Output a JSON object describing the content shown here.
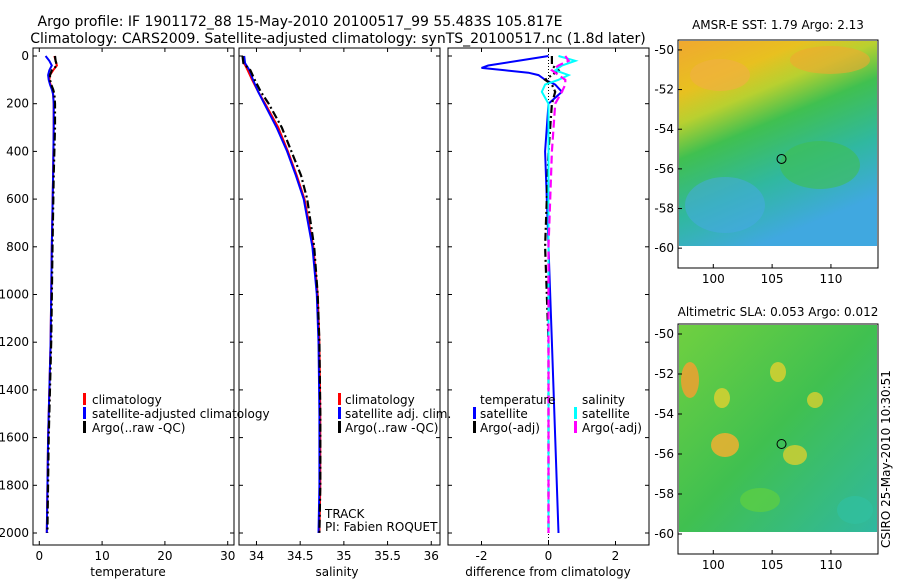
{
  "title": {
    "line1": "Argo profile: IF 1901172_88 15-May-2010 20100517_99 55.483S 105.817E",
    "line2": "Climatology: CARS2009. Satellite-adjusted climatology: synTS_20100517.nc (1.8d later)"
  },
  "colors": {
    "red": "#ff0000",
    "blue": "#0000ff",
    "black": "#000000",
    "cyan": "#00ffff",
    "magenta": "#ff00ff"
  },
  "depth_ticks": [
    "0",
    "200",
    "400",
    "600",
    "800",
    "1000",
    "1200",
    "1400",
    "1600",
    "1800",
    "2000"
  ],
  "chart_data": [
    {
      "type": "line",
      "name": "temperature-profile",
      "xlabel": "temperature",
      "ylabel": "",
      "xlim": [
        -1,
        31
      ],
      "ylim": [
        2050,
        0
      ],
      "x_ticks": [
        "0",
        "10",
        "20",
        "30"
      ],
      "y_reversed": true,
      "legend": [
        "climatology",
        "satellite-adjusted climatology",
        "Argo(..raw -QC)"
      ],
      "series": [
        {
          "name": "climatology",
          "color": "red",
          "dash": "solid",
          "depth": [
            0,
            20,
            40,
            60,
            80,
            100,
            120,
            140,
            160,
            200,
            300,
            500,
            800,
            1200,
            1600,
            2000
          ],
          "values": [
            2.4,
            2.6,
            2.8,
            2.2,
            1.7,
            1.6,
            1.8,
            2.1,
            2.2,
            2.3,
            2.3,
            2.2,
            2.0,
            1.8,
            1.4,
            1.2
          ]
        },
        {
          "name": "satellite-adjusted climatology",
          "color": "blue",
          "dash": "solid",
          "depth": [
            0,
            20,
            40,
            60,
            80,
            100,
            120,
            140,
            160,
            200,
            300,
            500,
            800,
            1200,
            1600,
            2000
          ],
          "values": [
            1.0,
            1.6,
            2.0,
            1.6,
            1.4,
            1.5,
            1.7,
            2.0,
            2.2,
            2.3,
            2.3,
            2.2,
            2.0,
            1.8,
            1.4,
            1.2
          ]
        },
        {
          "name": "Argo(..raw -QC)",
          "color": "black",
          "dash": "dashdot",
          "depth": [
            0,
            20,
            40,
            60,
            80,
            100,
            120,
            140,
            160,
            200,
            300,
            500,
            800,
            1200,
            1600,
            2000
          ],
          "values": [
            2.5,
            2.6,
            2.8,
            2.0,
            1.7,
            1.7,
            1.9,
            2.2,
            2.4,
            2.5,
            2.5,
            2.3,
            2.1,
            1.9,
            1.5,
            1.3
          ]
        }
      ]
    },
    {
      "type": "line",
      "name": "salinity-profile",
      "xlabel": "salinity",
      "ylabel": "",
      "xlim": [
        33.8,
        36.1
      ],
      "ylim": [
        2050,
        0
      ],
      "x_ticks": [
        "34",
        "34.5",
        "35",
        "35.5",
        "36"
      ],
      "y_reversed": true,
      "legend": [
        "climatology",
        "satellite adj. clim.",
        "Argo(..raw -QC)"
      ],
      "annotations": [
        "TRACK",
        "PI: Fabien ROQUET"
      ],
      "series": [
        {
          "name": "climatology",
          "color": "red",
          "dash": "solid",
          "depth": [
            0,
            30,
            60,
            100,
            150,
            200,
            300,
            400,
            500,
            600,
            800,
            1000,
            1200,
            1500,
            1800,
            2000
          ],
          "values": [
            33.85,
            33.86,
            33.9,
            33.95,
            34.02,
            34.1,
            34.25,
            34.36,
            34.46,
            34.55,
            34.65,
            34.7,
            34.72,
            34.73,
            34.73,
            34.72
          ]
        },
        {
          "name": "satellite adj. clim.",
          "color": "blue",
          "dash": "solid",
          "depth": [
            0,
            30,
            60,
            100,
            150,
            200,
            300,
            400,
            500,
            600,
            800,
            1000,
            1200,
            1500,
            1800,
            2000
          ],
          "values": [
            33.86,
            33.87,
            33.92,
            33.96,
            34.02,
            34.09,
            34.23,
            34.35,
            34.45,
            34.54,
            34.64,
            34.69,
            34.71,
            34.72,
            34.72,
            34.71
          ]
        },
        {
          "name": "Argo(..raw -QC)",
          "color": "black",
          "dash": "dashdot",
          "depth": [
            0,
            30,
            60,
            100,
            150,
            200,
            300,
            400,
            500,
            600,
            800,
            1000,
            1200,
            1500,
            1800,
            2000
          ],
          "values": [
            33.84,
            33.85,
            33.93,
            33.98,
            34.05,
            34.14,
            34.29,
            34.4,
            34.51,
            34.58,
            34.66,
            34.7,
            34.72,
            34.73,
            34.73,
            34.72
          ]
        }
      ]
    },
    {
      "type": "line",
      "name": "difference-profile",
      "xlabel": "difference from climatology",
      "ylabel": "",
      "xlim": [
        -3,
        3
      ],
      "ylim": [
        2050,
        0
      ],
      "x_ticks": [
        "-2",
        "0",
        "2"
      ],
      "y_reversed": true,
      "legend_headers": [
        "temperature",
        "salinity"
      ],
      "legend": [
        "satellite",
        "Argo(-adj)",
        "satellite",
        "Argo(-adj)"
      ],
      "series": [
        {
          "name": "temperature satellite",
          "color": "blue",
          "dash": "solid",
          "depth": [
            0,
            20,
            40,
            50,
            60,
            70,
            80,
            100,
            120,
            150,
            200,
            400,
            800,
            1200,
            1600,
            2000
          ],
          "values": [
            0.0,
            -0.9,
            -1.8,
            -2.0,
            -1.3,
            -0.6,
            -0.3,
            -0.1,
            0.2,
            0.4,
            0.0,
            -0.1,
            0.0,
            0.1,
            0.2,
            0.3
          ]
        },
        {
          "name": "temperature Argo(-adj)",
          "color": "black",
          "dash": "dashdot",
          "depth": [
            0,
            20,
            40,
            60,
            80,
            100,
            120,
            150,
            200,
            400,
            800,
            1200,
            1600,
            2000
          ],
          "values": [
            0.1,
            0.1,
            0.1,
            0.3,
            0.1,
            -0.1,
            0.1,
            0.2,
            0.1,
            0.0,
            -0.1,
            0.0,
            0.0,
            0.0
          ]
        },
        {
          "name": "salinity satellite",
          "color": "cyan",
          "dash": "solid",
          "depth": [
            0,
            20,
            40,
            60,
            80,
            100,
            120,
            150,
            200,
            400,
            800,
            1200,
            1600,
            2000
          ],
          "values": [
            0.3,
            0.8,
            0.4,
            0.2,
            0.6,
            0.3,
            -0.1,
            -0.2,
            0.0,
            0.0,
            0.0,
            0.0,
            0.0,
            0.0
          ]
        },
        {
          "name": "salinity Argo(-adj)",
          "color": "magenta",
          "dash": "dash",
          "depth": [
            0,
            20,
            40,
            60,
            80,
            100,
            120,
            150,
            200,
            400,
            800,
            1200,
            1600,
            2000
          ],
          "values": [
            0.5,
            0.6,
            0.3,
            0.1,
            0.3,
            0.5,
            0.5,
            0.4,
            0.2,
            0.1,
            0.0,
            0.0,
            0.0,
            0.0
          ]
        }
      ]
    },
    {
      "type": "heatmap",
      "name": "amsr-sst-map",
      "title": "AMSR-E SST: 1.79 Argo: 2.13",
      "xlim": [
        97,
        114
      ],
      "ylim": [
        -61,
        -49.5
      ],
      "x_ticks": [
        "100",
        "105",
        "110"
      ],
      "y_ticks": [
        "-50",
        "-52",
        "-54",
        "-56",
        "-58",
        "-60"
      ],
      "marker": {
        "lon": 105.8,
        "lat": -55.5
      }
    },
    {
      "type": "heatmap",
      "name": "altimetric-sla-map",
      "title": "Altimetric SLA: 0.053 Argo: 0.012",
      "xlim": [
        97,
        114
      ],
      "ylim": [
        -61,
        -49.5
      ],
      "x_ticks": [
        "100",
        "105",
        "110"
      ],
      "y_ticks": [
        "-50",
        "-52",
        "-54",
        "-56",
        "-58",
        "-60"
      ],
      "marker": {
        "lon": 105.8,
        "lat": -55.5
      }
    }
  ],
  "credit": "CSIRO 25-May-2010 10:30:51"
}
